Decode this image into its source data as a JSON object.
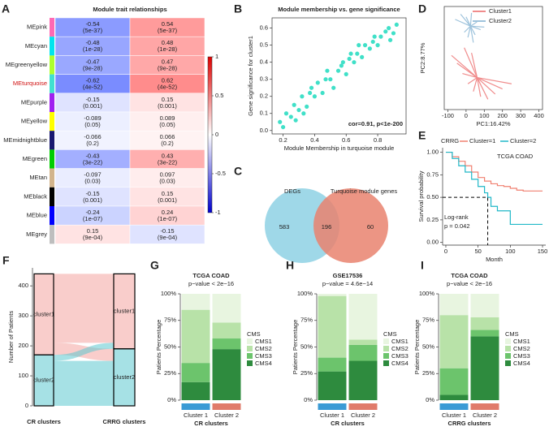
{
  "chart_data": [
    {
      "type": "heatmap",
      "panel": "A",
      "title": "Module trait relationships",
      "highlight_row": 3,
      "rows": [
        {
          "name": "MEpink",
          "color": "#ff69b4",
          "values": [
            -0.54,
            0.54
          ],
          "p_labels": [
            "(5e-37)",
            "(5e-37)"
          ]
        },
        {
          "name": "MEcyan",
          "color": "#00e5ee",
          "values": [
            -0.48,
            0.48
          ],
          "p_labels": [
            "(1e-28)",
            "(1e-28)"
          ]
        },
        {
          "name": "MEgreenyellow",
          "color": "#adff2f",
          "values": [
            -0.47,
            0.47
          ],
          "p_labels": [
            "(9e-28)",
            "(9e-28)"
          ]
        },
        {
          "name": "MEturquoise",
          "color": "#40e0d0",
          "values": [
            -0.62,
            0.62
          ],
          "p_labels": [
            "(4e-52)",
            "(4e-52)"
          ]
        },
        {
          "name": "MEpurple",
          "color": "#a020f0",
          "values": [
            -0.15,
            0.15
          ],
          "p_labels": [
            "(0.001)",
            "(0.001)"
          ]
        },
        {
          "name": "MEyellow",
          "color": "#ffff00",
          "values": [
            -0.089,
            0.089
          ],
          "p_labels": [
            "(0.05)",
            "(0.05)"
          ]
        },
        {
          "name": "MEmidnightblue",
          "color": "#191970",
          "values": [
            -0.066,
            0.066
          ],
          "p_labels": [
            "(0.2)",
            "(0.2)"
          ]
        },
        {
          "name": "MEgreen",
          "color": "#00cd00",
          "values": [
            -0.43,
            0.43
          ],
          "p_labels": [
            "(3e-22)",
            "(3e-22)"
          ]
        },
        {
          "name": "MEtan",
          "color": "#d2b48c",
          "values": [
            -0.097,
            0.097
          ],
          "p_labels": [
            "(0.03)",
            "(0.03)"
          ]
        },
        {
          "name": "MEblack",
          "color": "#000000",
          "values": [
            -0.15,
            0.15
          ],
          "p_labels": [
            "(0.001)",
            "(0.001)"
          ]
        },
        {
          "name": "MEblue",
          "color": "#0000ff",
          "values": [
            -0.24,
            0.24
          ],
          "p_labels": [
            "(1e-07)",
            "(1e-07)"
          ]
        },
        {
          "name": "MEgrey",
          "color": "#bebebe",
          "values": [
            0.15,
            -0.15
          ],
          "p_labels": [
            "(9e-04)",
            "(9e-04)"
          ]
        }
      ],
      "colorbar_lim": [
        -1,
        1
      ],
      "colorbar_ticks": [
        1,
        0.5,
        0,
        -0.5,
        -1
      ]
    },
    {
      "type": "scatter",
      "panel": "B",
      "title": "Module membership vs. gene significance",
      "xlabel": "Module Membership in turquoise module",
      "ylabel": "Gene significance for cluster1",
      "annotation": "cor=0.91, p<1e-200",
      "color": "#40e0c8",
      "x": [
        0.18,
        0.2,
        0.22,
        0.25,
        0.27,
        0.3,
        0.32,
        0.35,
        0.37,
        0.4,
        0.42,
        0.45,
        0.47,
        0.5,
        0.52,
        0.55,
        0.57,
        0.6,
        0.62,
        0.65,
        0.67,
        0.7,
        0.72,
        0.75,
        0.77,
        0.8,
        0.82,
        0.85,
        0.87,
        0.9,
        0.92,
        0.28,
        0.38,
        0.48,
        0.58,
        0.68,
        0.78,
        0.88,
        0.33,
        0.63
      ],
      "values": [
        0.05,
        0.02,
        0.1,
        0.08,
        0.15,
        0.12,
        0.2,
        0.14,
        0.22,
        0.2,
        0.28,
        0.22,
        0.3,
        0.3,
        0.25,
        0.35,
        0.38,
        0.33,
        0.42,
        0.4,
        0.45,
        0.43,
        0.5,
        0.48,
        0.52,
        0.5,
        0.55,
        0.58,
        0.6,
        0.57,
        0.62,
        0.06,
        0.25,
        0.35,
        0.4,
        0.5,
        0.55,
        0.53,
        0.1,
        0.45
      ],
      "xlim": [
        0.13,
        0.98
      ],
      "xticks": [
        0.2,
        0.4,
        0.6,
        0.8
      ],
      "ylim": [
        -0.02,
        0.66
      ],
      "yticks": [
        {
          "value": 0,
          "label": "0.0"
        },
        0.1,
        0.2,
        0.3,
        0.4,
        0.5,
        0.6
      ]
    },
    {
      "type": "venn",
      "panel": "C",
      "sets": [
        {
          "name": "DEGs",
          "color": "#9fd8e8"
        },
        {
          "name": "Turquoise module genes",
          "color": "#e9826f"
        }
      ],
      "values": [
        583,
        196,
        60
      ]
    },
    {
      "type": "pca",
      "panel": "D",
      "xlabel": "PC1:16.42%",
      "ylabel": "PC2:8.77%",
      "series": [
        {
          "name": "Cluster1",
          "color": "#f08c8c",
          "x": [
            -50,
            -20,
            10,
            40,
            80,
            120,
            160,
            200,
            250,
            -80,
            -10,
            30
          ],
          "values": [
            -20,
            -60,
            -100,
            -130,
            -150,
            -160,
            -140,
            -120,
            -100,
            10,
            40,
            20
          ]
        },
        {
          "name": "Cluster2",
          "color": "#9ec3dc",
          "x": [
            -60,
            -30,
            0,
            30,
            60,
            100,
            -10,
            20,
            50,
            80,
            40,
            10
          ],
          "values": [
            150,
            170,
            160,
            175,
            140,
            120,
            100,
            130,
            90,
            110,
            60,
            80
          ]
        }
      ],
      "xlim": [
        -120,
        420
      ],
      "xticks": [
        -100,
        0,
        100,
        200,
        300,
        400
      ],
      "ylim": [
        -200,
        200
      ]
    },
    {
      "type": "survival",
      "panel": "E",
      "legend_title": "CRRG",
      "annotation": "TCGA COAD",
      "test_label": "Log-rank",
      "p_label": "p = 0.042",
      "xlabel": "Month",
      "ylabel": "Survival probability",
      "series": [
        {
          "name": "Cluster=1",
          "color": "#f08070",
          "x": [
            0,
            10,
            20,
            30,
            40,
            50,
            60,
            70,
            80,
            90,
            100,
            110,
            120,
            130,
            150
          ],
          "values": [
            1,
            0.95,
            0.9,
            0.85,
            0.78,
            0.72,
            0.68,
            0.65,
            0.63,
            0.62,
            0.6,
            0.58,
            0.57,
            0.57,
            0.57
          ]
        },
        {
          "name": "Cluster=2",
          "color": "#20b8c8",
          "x": [
            0,
            10,
            20,
            30,
            40,
            50,
            60,
            65,
            70,
            80,
            100,
            150
          ],
          "values": [
            1,
            0.93,
            0.85,
            0.78,
            0.7,
            0.62,
            0.55,
            0.5,
            0.4,
            0.35,
            0.2,
            0.2
          ]
        }
      ],
      "median_line": {
        "x": 65,
        "y": 0.5
      },
      "xlim": [
        -5,
        155
      ],
      "xticks": [
        0,
        50,
        100,
        150
      ],
      "ylim": [
        -0.03,
        1.05
      ],
      "yticks": [
        {
          "value": 0,
          "label": "0.00"
        },
        {
          "value": 0.25,
          "label": "0.25"
        },
        {
          "value": 0.5,
          "label": "0.50"
        },
        {
          "value": 0.75,
          "label": "0.75"
        },
        {
          "value": 1,
          "label": "1.00"
        }
      ]
    },
    {
      "type": "alluvial",
      "panel": "F",
      "ylabel": "Number of Patients",
      "axes": [
        "CR clusters",
        "CRRG clusters"
      ],
      "nodes": [
        "cluster1",
        "cluster2"
      ],
      "node_colors": [
        "#f4a4a0",
        "#5cc8d0"
      ],
      "flows": [
        {
          "from": 0,
          "to": 0,
          "value": 230
        },
        {
          "from": 0,
          "to": 1,
          "value": 40
        },
        {
          "from": 1,
          "to": 0,
          "value": 20
        },
        {
          "from": 1,
          "to": 1,
          "value": 150
        }
      ],
      "ylim": [
        0,
        460
      ],
      "yticks": [
        0,
        100,
        200,
        300,
        400
      ]
    },
    {
      "type": "stacked",
      "panel": "G",
      "title": "TCGA COAD",
      "subtitle": "p−value < 2e−16",
      "ylabel": "Patients Percentage",
      "xlabel": "CR clusters",
      "legend_title": "CMS",
      "categories": [
        "Cluster 1",
        "Cluster 2"
      ],
      "category_colors": [
        "#3a9bd5",
        "#e07b6a"
      ],
      "series": [
        {
          "name": "CMS1",
          "color": "#e8f5e0",
          "values": [
            15,
            27
          ]
        },
        {
          "name": "CMS2",
          "color": "#b8e2a8",
          "values": [
            50,
            15
          ]
        },
        {
          "name": "CMS3",
          "color": "#6cc46c",
          "values": [
            18,
            10
          ]
        },
        {
          "name": "CMS4",
          "color": "#2e8b3e",
          "values": [
            17,
            48
          ]
        }
      ],
      "ylim": [
        0,
        100
      ],
      "yticks": [
        {
          "value": 0,
          "label": "0%"
        },
        {
          "value": 25,
          "label": "25%"
        },
        {
          "value": 50,
          "label": "50%"
        },
        {
          "value": 75,
          "label": "75%"
        },
        {
          "value": 100,
          "label": "100%"
        }
      ]
    },
    {
      "type": "stacked",
      "panel": "H",
      "title": "GSE17536",
      "subtitle": "p−value = 4.6e−14",
      "ylabel": "Patients Percentage",
      "xlabel": "CR clusters",
      "legend_title": "CMS",
      "categories": [
        "Cluster 1",
        "Cluster 2"
      ],
      "category_colors": [
        "#3a9bd5",
        "#e07b6a"
      ],
      "series": [
        {
          "name": "CMS1",
          "color": "#e8f5e0",
          "values": [
            2,
            43
          ]
        },
        {
          "name": "CMS2",
          "color": "#b8e2a8",
          "values": [
            58,
            5
          ]
        },
        {
          "name": "CMS3",
          "color": "#6cc46c",
          "values": [
            13,
            15
          ]
        },
        {
          "name": "CMS4",
          "color": "#2e8b3e",
          "values": [
            27,
            37
          ]
        }
      ],
      "ylim": [
        0,
        100
      ],
      "yticks": [
        {
          "value": 0,
          "label": "0%"
        },
        {
          "value": 25,
          "label": "25%"
        },
        {
          "value": 50,
          "label": "50%"
        },
        {
          "value": 75,
          "label": "75%"
        },
        {
          "value": 100,
          "label": "100%"
        }
      ]
    },
    {
      "type": "stacked",
      "panel": "I",
      "title": "TCGA COAD",
      "subtitle": "p−value < 2e−16",
      "ylabel": "Patients Percentage",
      "xlabel": "CRRG clusters",
      "legend_title": "CMS",
      "categories": [
        "Cluster 1",
        "Cluster 2"
      ],
      "category_colors": [
        "#3a9bd5",
        "#e07b6a"
      ],
      "series": [
        {
          "name": "CMS1",
          "color": "#e8f5e0",
          "values": [
            20,
            22
          ]
        },
        {
          "name": "CMS2",
          "color": "#b8e2a8",
          "values": [
            50,
            12
          ]
        },
        {
          "name": "CMS3",
          "color": "#6cc46c",
          "values": [
            25,
            6
          ]
        },
        {
          "name": "CMS4",
          "color": "#2e8b3e",
          "values": [
            5,
            60
          ]
        }
      ],
      "ylim": [
        0,
        100
      ],
      "yticks": [
        {
          "value": 0,
          "label": "0%"
        },
        {
          "value": 25,
          "label": "25%"
        },
        {
          "value": 50,
          "label": "50%"
        },
        {
          "value": 75,
          "label": "75%"
        },
        {
          "value": 100,
          "label": "100%"
        }
      ]
    }
  ]
}
